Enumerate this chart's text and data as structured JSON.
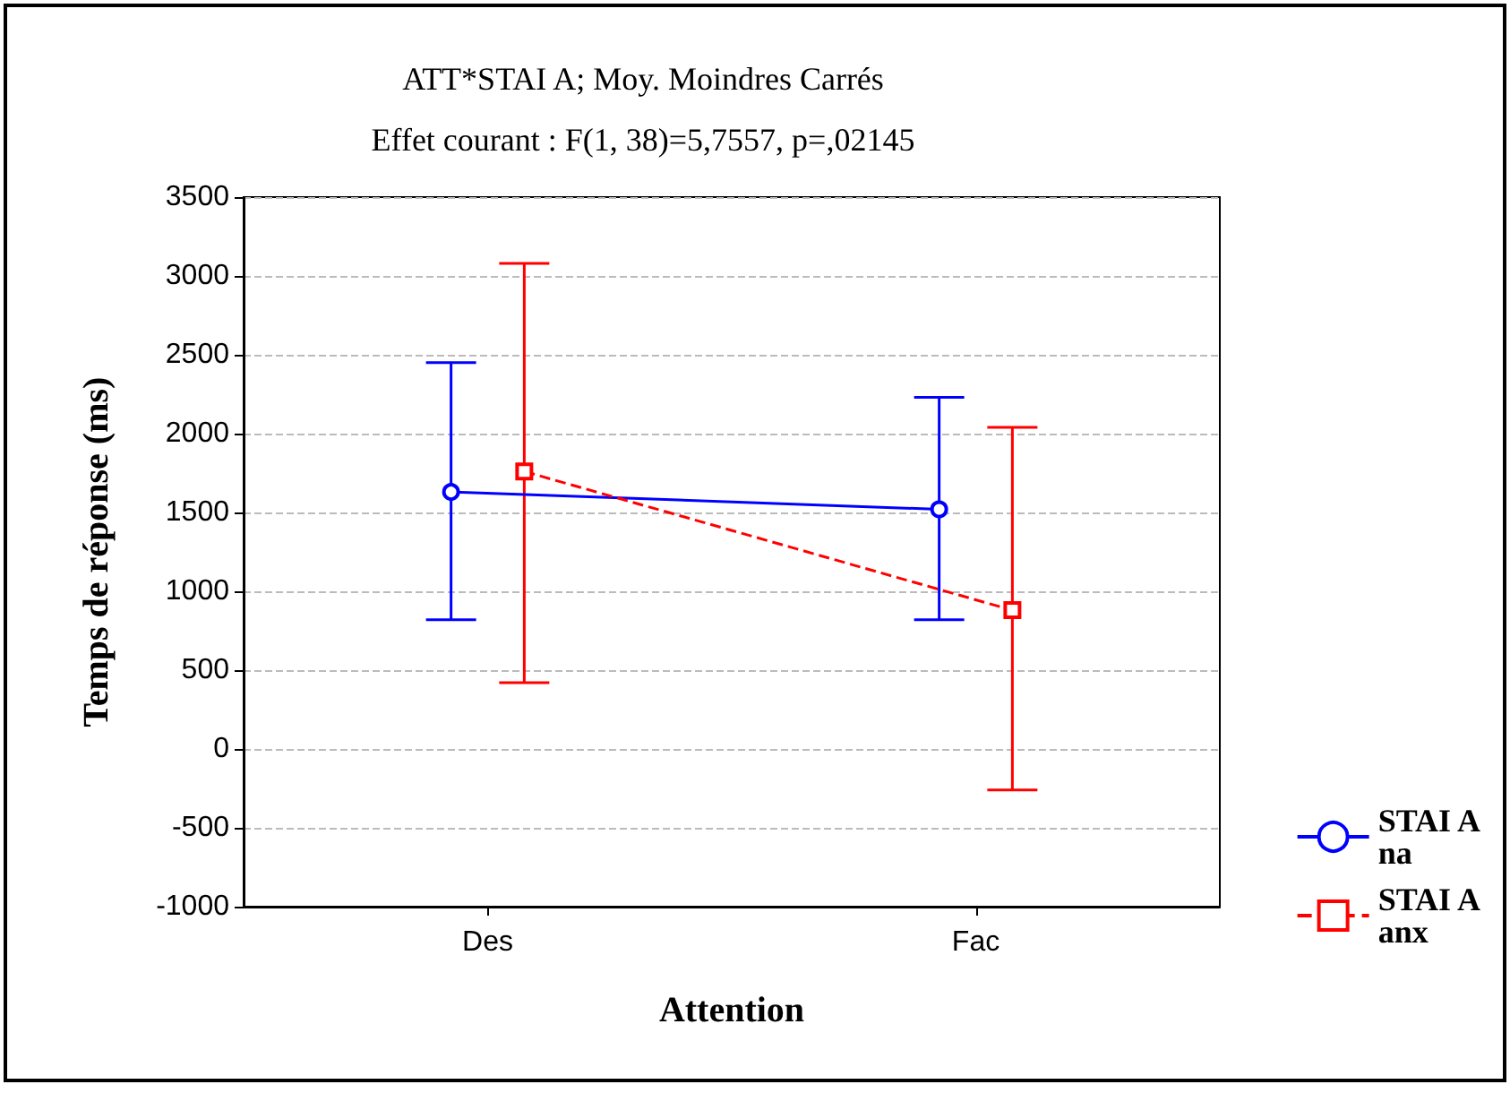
{
  "chart_data": {
    "type": "line",
    "title": "ATT*STAI A; Moy. Moindres Carrés",
    "subtitle": "Effet courant : F(1, 38)=5,7557, p=,02145",
    "xlabel": "Attention",
    "ylabel": "Temps de réponse (ms)",
    "categories": [
      "Des",
      "Fac"
    ],
    "series": [
      {
        "name": "STAI A na",
        "color": "#0000ff",
        "values": [
          1630,
          1520
        ],
        "errors": [
          [
            820,
            2450
          ],
          [
            820,
            2230
          ]
        ],
        "marker": "circle",
        "line_style": "solid"
      },
      {
        "name": "STAI A anx",
        "color": "#ff0000",
        "values": [
          1760,
          880
        ],
        "errors": [
          [
            420,
            3080
          ],
          [
            -260,
            2040
          ]
        ],
        "marker": "square",
        "line_style": "dashed"
      }
    ],
    "ylim": [
      -1000,
      3500
    ],
    "yticks": [
      -1000,
      -500,
      0,
      500,
      1000,
      1500,
      2000,
      2500,
      3000,
      3500
    ],
    "grid": "y",
    "legend": "right"
  }
}
